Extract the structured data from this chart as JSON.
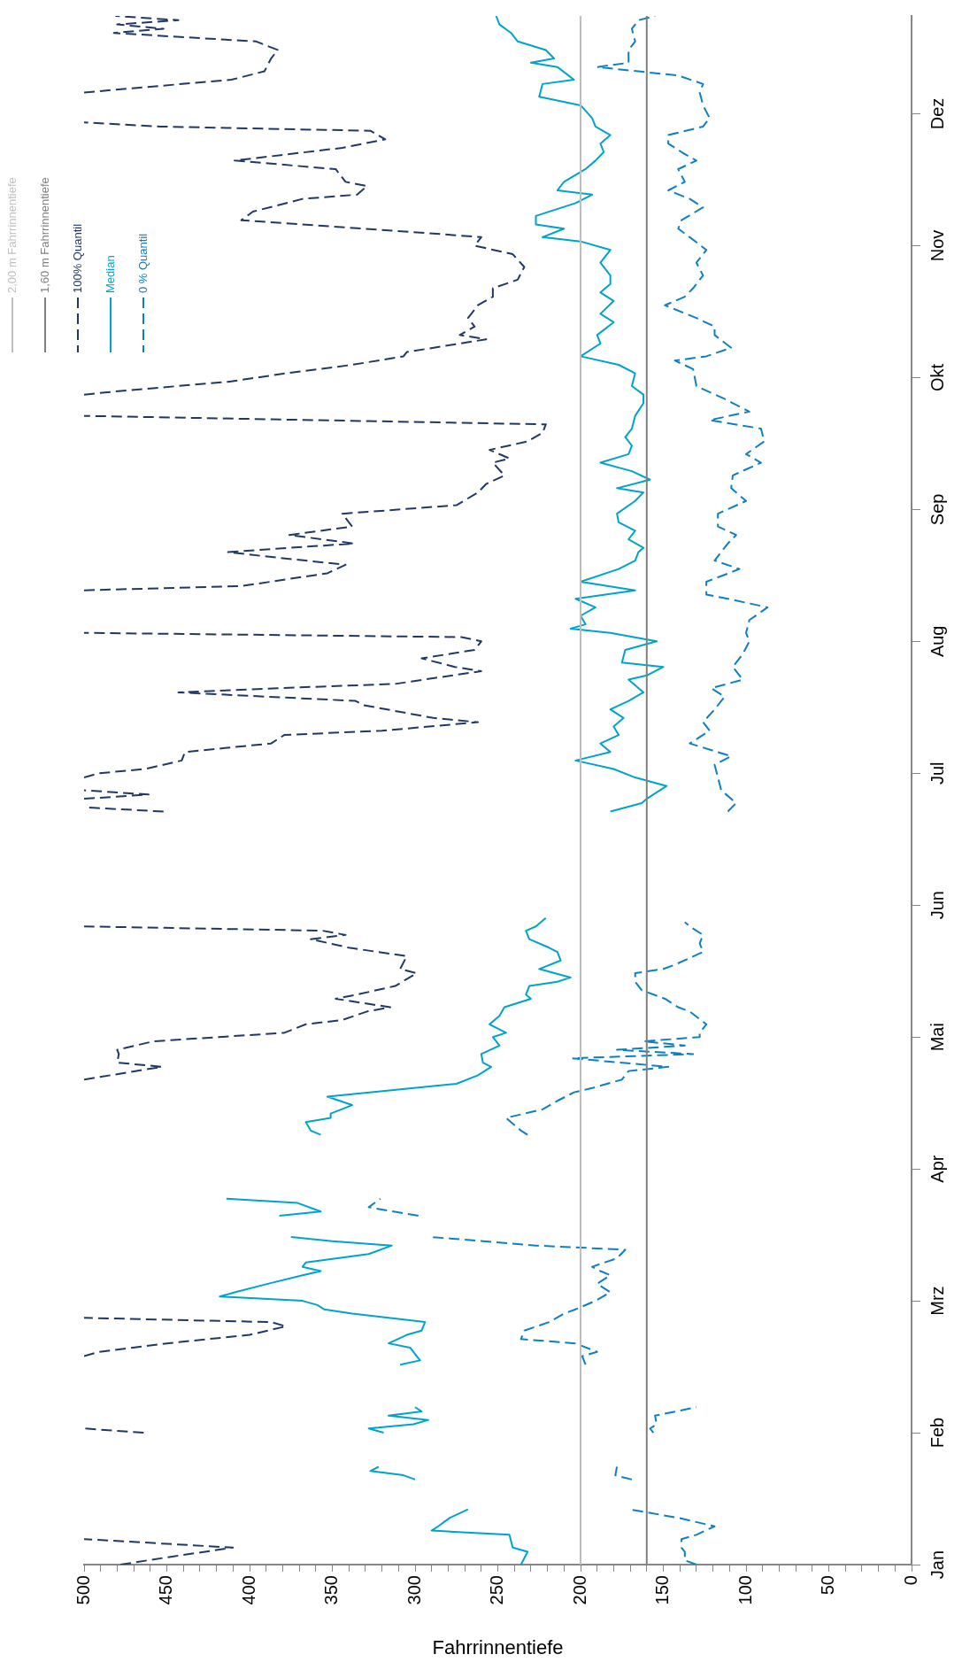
{
  "chart_data": {
    "type": "line",
    "orientation": "horizontal",
    "xlabel": "Fahrrinnentiefe",
    "xlim": [
      500,
      0
    ],
    "ylim": [
      "--01-01",
      "--12-31"
    ],
    "xticks": [
      0,
      {
        "value": 10,
        "label": null
      },
      {
        "value": 20,
        "label": null
      },
      {
        "value": 30,
        "label": null
      },
      {
        "value": 40,
        "label": null
      },
      50,
      {
        "value": 60,
        "label": null
      },
      {
        "value": 70,
        "label": null
      },
      {
        "value": 80,
        "label": null
      },
      {
        "value": 90,
        "label": null
      },
      100,
      {
        "value": 110,
        "label": null
      },
      {
        "value": 120,
        "label": null
      },
      {
        "value": 130,
        "label": null
      },
      {
        "value": 140,
        "label": null
      },
      150,
      {
        "value": 160,
        "label": null
      },
      {
        "value": 170,
        "label": null
      },
      {
        "value": 180,
        "label": null
      },
      {
        "value": 190,
        "label": null
      },
      200,
      {
        "value": 210,
        "label": null
      },
      {
        "value": 220,
        "label": null
      },
      {
        "value": 230,
        "label": null
      },
      {
        "value": 240,
        "label": null
      },
      250,
      {
        "value": 260,
        "label": null
      },
      {
        "value": 270,
        "label": null
      },
      {
        "value": 280,
        "label": null
      },
      {
        "value": 290,
        "label": null
      },
      300,
      {
        "value": 310,
        "label": null
      },
      {
        "value": 320,
        "label": null
      },
      {
        "value": 330,
        "label": null
      },
      {
        "value": 340,
        "label": null
      },
      350,
      {
        "value": 360,
        "label": null
      },
      {
        "value": 370,
        "label": null
      },
      {
        "value": 380,
        "label": null
      },
      {
        "value": 390,
        "label": null
      },
      400,
      {
        "value": 410,
        "label": null
      },
      {
        "value": 420,
        "label": null
      },
      {
        "value": 430,
        "label": null
      },
      {
        "value": 440,
        "label": null
      },
      450,
      {
        "value": 460,
        "label": null
      },
      {
        "value": 470,
        "label": null
      },
      {
        "value": 480,
        "label": null
      },
      {
        "value": 490,
        "label": null
      },
      500
    ],
    "yticks": [
      {
        "value": "--01-01",
        "label": "Jan"
      },
      {
        "value": "--02-01",
        "label": "Feb"
      },
      {
        "value": "--03-04",
        "label": "Mrz"
      },
      {
        "value": "--04-04",
        "label": "Apr"
      },
      {
        "value": "--05-05",
        "label": "Mai"
      },
      {
        "value": "--06-05",
        "label": "Jun"
      },
      {
        "value": "--07-06",
        "label": "Jul"
      },
      {
        "value": "--08-06",
        "label": "Aug"
      },
      {
        "value": "--09-06",
        "label": "Sep"
      },
      {
        "value": "--10-07",
        "label": "Okt"
      },
      {
        "value": "--11-07",
        "label": "Nov"
      },
      {
        "value": "--12-08",
        "label": "Dez"
      }
    ],
    "legend": "top left",
    "marker": "none",
    "series": [
      {
        "name": "2,00 m Fahrrinnentiefe",
        "color": "#bfbfbf",
        "line_style": "solid",
        "x": [
          "--01-01",
          "--12-31"
        ],
        "values": [
          200,
          200
        ]
      },
      {
        "name": "1,60 m Fahrrinnentiefe",
        "color": "#808080",
        "line_style": "solid",
        "x": [
          "--01-01",
          "--12-31"
        ],
        "values": [
          160,
          160
        ]
      },
      {
        "name": "100% Quantil",
        "color": "#1f3864",
        "line_style": "dashed",
        "x": [
          "--01-01",
          "--01-03",
          "--01-05",
          "--01-07",
          "--01-08",
          "--02-01",
          "--02-02",
          "--02-11",
          "--02-19",
          "--02-20",
          "--02-22",
          "--02-24",
          "--02-26",
          "--02-27",
          "--02-28",
          "--03-25",
          "--04-25",
          "--04-28",
          "--04-29",
          "--05-01",
          "--05-02",
          "--05-04",
          "--05-06",
          "--05-08",
          "--05-09",
          "--05-11",
          "--05-12",
          "--05-14",
          "--05-15",
          "--05-17",
          "--05-20",
          "--05-21",
          "--05-24",
          "--05-26",
          "--05-28",
          "--05-29",
          "--05-30",
          "--05-31",
          "--06-15",
          "--06-27",
          "--06-28",
          "--06-29",
          "--06-30",
          "--07-01",
          "--07-02",
          "--07-03",
          "--07-05",
          "--07-06",
          "--07-07",
          "--07-09",
          "--07-11",
          "--07-13",
          "--07-15",
          "--07-16",
          "--07-18",
          "--07-19",
          "--07-22",
          "--07-23",
          "--07-25",
          "--07-26",
          "--07-27",
          "--07-30",
          "--07-31",
          "--08-02",
          "--08-04",
          "--08-06",
          "--08-07",
          "--08-08",
          "--08-13",
          "--08-18",
          "--08-19",
          "--08-22",
          "--08-24",
          "--08-26",
          "--08-27",
          "--08-29",
          "--08-31",
          "--09-02",
          "--09-05",
          "--09-07",
          "--09-10",
          "--09-12",
          "--09-14",
          "--09-17",
          "--09-18",
          "--09-20",
          "--09-22",
          "--09-24",
          "--09-26",
          "--09-28",
          "--10-01",
          "--10-03",
          "--10-04",
          "--10-06",
          "--10-08",
          "--10-10",
          "--10-12",
          "--10-13",
          "--10-16",
          "--10-17",
          "--10-19",
          "--10-21",
          "--10-24",
          "--10-26",
          "--10-28",
          "--10-30",
          "--11-02",
          "--11-05",
          "--11-07",
          "--11-09",
          "--11-10",
          "--11-13",
          "--11-15",
          "--11-18",
          "--11-19",
          "--11-21",
          "--11-22",
          "--11-25",
          "--11-27",
          "--11-30",
          "--12-02",
          "--12-04",
          "--12-05",
          "--12-06",
          "--12-09",
          "--12-13",
          "--12-14",
          "--12-16",
          "--12-18",
          "--12-21",
          "--12-23",
          "--12-25",
          "--12-27",
          "--12-28",
          "--12-29",
          "--12-30",
          "--12-31"
        ],
        "values": [
          478,
          445,
          410,
          500,
          null,
          464,
          500,
          null,
          500,
          491,
          450,
          400,
          378,
          387,
          500,
          null,
          500,
          453,
          480,
          479,
          480,
          458,
          379,
          366,
          344,
          329,
          315,
          348,
          335,
          312,
          299,
          309,
          305,
          340,
          363,
          342,
          356,
          500,
          null,
          452,
          500,
          null,
          500,
          461,
          500,
          null,
          500,
          491,
          463,
          441,
          439,
          387,
          379,
          320,
          262,
          289,
          331,
          336,
          443,
          383,
          312,
          260,
          276,
          296,
          264,
          260,
          272,
          500,
          null,
          500,
          405,
          353,
          342,
          391,
          413,
          337,
          376,
          338,
          344,
          275,
          262,
          257,
          246,
          253,
          243,
          255,
          232,
          223,
          221,
          500,
          null,
          500,
          474,
          413,
          378,
          338,
          307,
          305,
          257,
          273,
          264,
          268,
          262,
          253,
          253,
          238,
          234,
          241,
          264,
          260,
          294,
          405,
          398,
          368,
          335,
          329,
          342,
          348,
          409,
          344,
          318,
          327,
          454,
          500,
          null,
          500,
          471,
          411,
          391,
          387,
          383,
          396,
          482,
          452,
          480,
          443,
          481
        ]
      },
      {
        "name": "Median",
        "color": "#00a3c9",
        "line_style": "solid",
        "x": [
          "--01-01",
          "--01-04",
          "--01-05",
          "--01-08",
          "--01-09",
          "--01-10",
          "--01-12",
          "--01-14",
          "--01-18",
          "--01-21",
          "--01-22",
          "--01-23",
          "--01-24",
          "--01-28",
          "--02-01",
          "--02-02",
          "--02-03",
          "--02-04",
          "--02-05",
          "--02-06",
          "--02-07",
          "--02-11",
          "--02-17",
          "--02-18",
          "--02-19",
          "--02-21",
          "--02-22",
          "--02-24",
          "--02-25",
          "--02-27",
          "--03-01",
          "--03-02",
          "--03-03",
          "--03-04",
          "--03-05",
          "--03-06",
          "--03-08",
          "--03-10",
          "--03-11",
          "--03-12",
          "--03-13",
          "--03-15",
          "--03-17",
          "--03-18",
          "--03-19",
          "--03-22",
          "--03-24",
          "--03-25",
          "--03-27",
          "--03-28",
          "--04-04",
          "--04-12",
          "--04-13",
          "--04-15",
          "--04-16",
          "--04-17",
          "--04-19",
          "--04-21",
          "--04-24",
          "--04-26",
          "--04-28",
          "--04-29",
          "--05-01",
          "--05-03",
          "--05-05",
          "--05-06",
          "--05-08",
          "--05-10",
          "--05-12",
          "--05-14",
          "--05-15",
          "--05-17",
          "--05-18",
          "--05-19",
          "--05-21",
          "--05-23",
          "--05-25",
          "--05-26",
          "--05-28",
          "--05-30",
          "--05-31",
          "--06-02",
          "--06-15",
          "--06-27",
          "--06-29",
          "--06-30",
          "--07-03",
          "--07-05",
          "--07-07",
          "--07-09",
          "--07-11",
          "--07-13",
          "--07-15",
          "--07-17",
          "--07-19",
          "--07-21",
          "--07-23",
          "--07-25",
          "--07-28",
          "--07-29",
          "--07-31",
          "--08-01",
          "--08-04",
          "--08-06",
          "--08-08",
          "--08-09",
          "--08-10",
          "--08-12",
          "--08-14",
          "--08-16",
          "--08-18",
          "--08-20",
          "--08-23",
          "--08-25",
          "--08-27",
          "--08-28",
          "--08-30",
          "--09-01",
          "--09-03",
          "--09-05",
          "--09-08",
          "--09-10",
          "--09-11",
          "--09-13",
          "--09-15",
          "--09-17",
          "--09-19",
          "--09-21",
          "--09-23",
          "--09-25",
          "--09-28",
          "--10-01",
          "--10-03",
          "--10-05",
          "--10-08",
          "--10-10",
          "--10-12",
          "--10-15",
          "--10-17",
          "--10-20",
          "--10-22",
          "--10-25",
          "--10-27",
          "--10-29",
          "--10-31",
          "--11-03",
          "--11-06",
          "--11-08",
          "--11-09",
          "--11-11",
          "--11-12",
          "--11-14",
          "--11-17",
          "--11-19",
          "--11-20",
          "--11-22",
          "--11-25",
          "--11-27",
          "--11-29",
          "--12-01",
          "--12-03",
          "--12-05",
          "--12-07",
          "--12-10",
          "--12-12",
          "--12-15",
          "--12-16",
          "--12-19",
          "--12-20",
          "--12-21",
          "--12-23",
          "--12-25",
          "--12-27",
          "--12-29",
          "--12-31"
        ],
        "values": [
          236,
          232,
          241,
          243,
          290,
          286,
          279,
          268,
          null,
          300,
          307,
          327,
          322,
          null,
          319,
          328,
          301,
          292,
          316,
          296,
          300,
          null,
          309,
          297,
          299,
          303,
          316,
          305,
          296,
          294,
          338,
          355,
          359,
          368,
          418,
          409,
          389,
          368,
          357,
          368,
          366,
          328,
          314,
          350,
          375,
          null,
          382,
          357,
          371,
          414,
          null,
          357,
          363,
          366,
          351,
          351,
          338,
          353,
          275,
          262,
          254,
          259,
          260,
          249,
          253,
          245,
          255,
          249,
          246,
          230,
          233,
          231,
          214,
          206,
          225,
          212,
          214,
          219,
          231,
          233,
          227,
          221,
          null,
          182,
          163,
          160,
          148,
          167,
          180,
          203,
          182,
          188,
          177,
          180,
          174,
          182,
          171,
          162,
          171,
          160,
          150,
          175,
          173,
          154,
          182,
          206,
          197,
          200,
          191,
          203,
          167,
          200,
          177,
          167,
          165,
          162,
          171,
          167,
          177,
          178,
          167,
          162,
          178,
          158,
          169,
          188,
          171,
          169,
          173,
          169,
          167,
          162,
          162,
          169,
          167,
          177,
          200,
          188,
          190,
          180,
          188,
          180,
          188,
          182,
          182,
          188,
          182,
          200,
          223,
          210,
          227,
          227,
          203,
          193,
          214,
          210,
          197,
          191,
          186,
          188,
          182,
          191,
          193,
          200,
          225,
          223,
          204,
          214,
          230,
          216,
          221,
          238,
          242,
          249,
          251
        ]
      },
      {
        "name": "0 % Quantil",
        "color": "#0e7fc0",
        "line_style": "dashed",
        "x": [
          "--01-01",
          "--01-02",
          "--01-04",
          "--01-05",
          "--01-07",
          "--01-08",
          "--01-10",
          "--01-12",
          "--01-14",
          "--01-18",
          "--01-21",
          "--01-22",
          "--01-24",
          "--01-28",
          "--02-01",
          "--02-02",
          "--02-03",
          "--02-05",
          "--02-07",
          "--02-11",
          "--02-17",
          "--02-19",
          "--02-20",
          "--02-22",
          "--02-23",
          "--02-25",
          "--02-27",
          "--03-01",
          "--03-02",
          "--03-04",
          "--03-06",
          "--03-07",
          "--03-08",
          "--03-10",
          "--03-11",
          "--03-12",
          "--03-14",
          "--03-16",
          "--03-17",
          "--03-19",
          "--03-22",
          "--03-24",
          "--03-26",
          "--03-28",
          "--04-04",
          "--04-12",
          "--04-13",
          "--04-16",
          "--04-18",
          "--04-20",
          "--04-22",
          "--04-23",
          "--04-25",
          "--04-27",
          "--04-28",
          "--04-30",
          "--05-01",
          "--05-02",
          "--05-03",
          "--05-04",
          "--05-05",
          "--05-06",
          "--05-08",
          "--05-11",
          "--05-12",
          "--05-14",
          "--05-16",
          "--05-18",
          "--05-20",
          "--05-21",
          "--05-22",
          "--05-25",
          "--05-27",
          "--05-29",
          "--05-31",
          "--06-01",
          "--06-15",
          "--06-27",
          "--06-29",
          "--07-02",
          "--07-05",
          "--07-08",
          "--07-10",
          "--07-13",
          "--07-14",
          "--07-16",
          "--07-18",
          "--07-21",
          "--07-24",
          "--07-26",
          "--07-28",
          "--07-31",
          "--08-03",
          "--08-06",
          "--08-08",
          "--08-11",
          "--08-14",
          "--08-16",
          "--08-17",
          "--08-20",
          "--08-23",
          "--08-25",
          "--08-29",
          "--08-31",
          "--09-02",
          "--09-05",
          "--09-08",
          "--09-11",
          "--09-14",
          "--09-17",
          "--09-19",
          "--09-22",
          "--09-25",
          "--09-27",
          "--09-29",
          "--10-02",
          "--10-05",
          "--10-09",
          "--10-11",
          "--10-12",
          "--10-14",
          "--10-17",
          "--10-19",
          "--10-21",
          "--10-24",
          "--10-26",
          "--10-28",
          "--10-31",
          "--11-03",
          "--11-06",
          "--11-09",
          "--11-11",
          "--11-13",
          "--11-16",
          "--11-18",
          "--11-20",
          "--11-22",
          "--11-25",
          "--11-27",
          "--11-29",
          "--12-01",
          "--12-03",
          "--12-05",
          "--12-07",
          "--12-10",
          "--12-13",
          "--12-15",
          "--12-17",
          "--12-19",
          "--12-20",
          "--12-23",
          "--12-25",
          "--12-28",
          "--12-30",
          "--12-31"
        ],
        "values": [
          130,
          137,
          137,
          139,
          139,
          130,
          119,
          141,
          171,
          null,
          169,
          179,
          178,
          null,
          156,
          158,
          154,
          155,
          130,
          null,
          197,
          199,
          190,
          203,
          236,
          234,
          219,
          210,
          203,
          191,
          182,
          186,
          190,
          182,
          188,
          193,
          178,
          173,
          227,
          290,
          null,
          298,
          328,
          321,
          null,
          232,
          236,
          245,
          223,
          214,
          204,
          193,
          175,
          171,
          147,
          205,
          132,
          178,
          137,
          162,
          128,
          128,
          124,
          134,
          141,
          149,
          163,
          167,
          167,
          150,
          143,
          126,
          128,
          126,
          134,
          137,
          null,
          111,
          106,
          115,
          117,
          119,
          109,
          134,
          130,
          122,
          126,
          119,
          113,
          121,
          102,
          108,
          102,
          98,
          100,
          98,
          87,
          111,
          124,
          124,
          104,
          119,
          111,
          106,
          117,
          117,
          100,
          109,
          108,
          91,
          100,
          89,
          91,
          122,
          98,
          113,
          130,
          132,
          143,
          124,
          109,
          119,
          119,
          130,
          149,
          137,
          132,
          126,
          130,
          124,
          134,
          141,
          139,
          126,
          134,
          147,
          137,
          141,
          130,
          139,
          147,
          147,
          126,
          122,
          126,
          128,
          126,
          141,
          190,
          171,
          171,
          167,
          169,
          165,
          155
        ]
      }
    ]
  }
}
